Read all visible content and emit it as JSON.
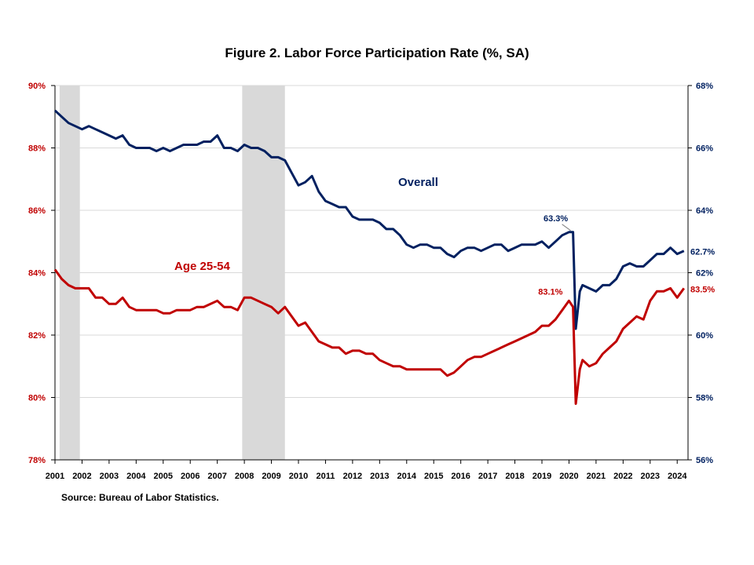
{
  "title": "Figure 2. Labor Force Participation  Rate (%, SA)",
  "source": "Source: Bureau of Labor Statistics.",
  "colors": {
    "overall": "#002060",
    "age": "#c00000",
    "recession": "#d9d9d9",
    "grid": "#d9d9d9"
  },
  "chart_data": {
    "type": "line",
    "title": "Figure 2. Labor Force Participation  Rate (%, SA)",
    "x_ticks": [
      "2001",
      "2002",
      "2003",
      "2004",
      "2005",
      "2006",
      "2007",
      "2008",
      "2009",
      "2010",
      "2011",
      "2012",
      "2013",
      "2014",
      "2015",
      "2016",
      "2017",
      "2018",
      "2019",
      "2020",
      "2021",
      "2022",
      "2023",
      "2024"
    ],
    "xlim": [
      2001.0,
      2024.4
    ],
    "y_left": {
      "ylim": [
        78,
        90
      ],
      "ticks": [
        "78%",
        "80%",
        "82%",
        "84%",
        "86%",
        "88%",
        "90%"
      ]
    },
    "y_right": {
      "ylim": [
        56,
        68
      ],
      "ticks": [
        "56%",
        "58%",
        "60%",
        "62%",
        "64%",
        "66%",
        "68%"
      ]
    },
    "grid": true,
    "recessions": [
      [
        2001.17,
        2001.92
      ],
      [
        2007.92,
        2009.5
      ]
    ],
    "series": [
      {
        "name": "Overall",
        "axis": "right",
        "points": [
          [
            2001.0,
            67.2
          ],
          [
            2001.25,
            67.0
          ],
          [
            2001.5,
            66.8
          ],
          [
            2001.75,
            66.7
          ],
          [
            2002.0,
            66.6
          ],
          [
            2002.25,
            66.7
          ],
          [
            2002.5,
            66.6
          ],
          [
            2002.75,
            66.5
          ],
          [
            2003.0,
            66.4
          ],
          [
            2003.25,
            66.3
          ],
          [
            2003.5,
            66.4
          ],
          [
            2003.75,
            66.1
          ],
          [
            2004.0,
            66.0
          ],
          [
            2004.25,
            66.0
          ],
          [
            2004.5,
            66.0
          ],
          [
            2004.75,
            65.9
          ],
          [
            2005.0,
            66.0
          ],
          [
            2005.25,
            65.9
          ],
          [
            2005.5,
            66.0
          ],
          [
            2005.75,
            66.1
          ],
          [
            2006.0,
            66.1
          ],
          [
            2006.25,
            66.1
          ],
          [
            2006.5,
            66.2
          ],
          [
            2006.75,
            66.2
          ],
          [
            2007.0,
            66.4
          ],
          [
            2007.25,
            66.0
          ],
          [
            2007.5,
            66.0
          ],
          [
            2007.75,
            65.9
          ],
          [
            2008.0,
            66.1
          ],
          [
            2008.25,
            66.0
          ],
          [
            2008.5,
            66.0
          ],
          [
            2008.75,
            65.9
          ],
          [
            2009.0,
            65.7
          ],
          [
            2009.25,
            65.7
          ],
          [
            2009.5,
            65.6
          ],
          [
            2009.75,
            65.2
          ],
          [
            2010.0,
            64.8
          ],
          [
            2010.25,
            64.9
          ],
          [
            2010.5,
            65.1
          ],
          [
            2010.75,
            64.6
          ],
          [
            2011.0,
            64.3
          ],
          [
            2011.25,
            64.2
          ],
          [
            2011.5,
            64.1
          ],
          [
            2011.75,
            64.1
          ],
          [
            2012.0,
            63.8
          ],
          [
            2012.25,
            63.7
          ],
          [
            2012.5,
            63.7
          ],
          [
            2012.75,
            63.7
          ],
          [
            2013.0,
            63.6
          ],
          [
            2013.25,
            63.4
          ],
          [
            2013.5,
            63.4
          ],
          [
            2013.75,
            63.2
          ],
          [
            2014.0,
            62.9
          ],
          [
            2014.25,
            62.8
          ],
          [
            2014.5,
            62.9
          ],
          [
            2014.75,
            62.9
          ],
          [
            2015.0,
            62.8
          ],
          [
            2015.25,
            62.8
          ],
          [
            2015.5,
            62.6
          ],
          [
            2015.75,
            62.5
          ],
          [
            2016.0,
            62.7
          ],
          [
            2016.25,
            62.8
          ],
          [
            2016.5,
            62.8
          ],
          [
            2016.75,
            62.7
          ],
          [
            2017.0,
            62.8
          ],
          [
            2017.25,
            62.9
          ],
          [
            2017.5,
            62.9
          ],
          [
            2017.75,
            62.7
          ],
          [
            2018.0,
            62.8
          ],
          [
            2018.25,
            62.9
          ],
          [
            2018.5,
            62.9
          ],
          [
            2018.75,
            62.9
          ],
          [
            2019.0,
            63.0
          ],
          [
            2019.25,
            62.8
          ],
          [
            2019.5,
            63.0
          ],
          [
            2019.75,
            63.2
          ],
          [
            2020.0,
            63.3
          ],
          [
            2020.15,
            63.3
          ],
          [
            2020.25,
            60.2
          ],
          [
            2020.4,
            61.4
          ],
          [
            2020.5,
            61.6
          ],
          [
            2020.75,
            61.5
          ],
          [
            2021.0,
            61.4
          ],
          [
            2021.25,
            61.6
          ],
          [
            2021.5,
            61.6
          ],
          [
            2021.75,
            61.8
          ],
          [
            2022.0,
            62.2
          ],
          [
            2022.25,
            62.3
          ],
          [
            2022.5,
            62.2
          ],
          [
            2022.75,
            62.2
          ],
          [
            2023.0,
            62.4
          ],
          [
            2023.25,
            62.6
          ],
          [
            2023.5,
            62.6
          ],
          [
            2023.75,
            62.8
          ],
          [
            2024.0,
            62.6
          ],
          [
            2024.25,
            62.7
          ]
        ]
      },
      {
        "name": "Age 25-54",
        "axis": "left",
        "points": [
          [
            2001.0,
            84.1
          ],
          [
            2001.25,
            83.8
          ],
          [
            2001.5,
            83.6
          ],
          [
            2001.75,
            83.5
          ],
          [
            2002.0,
            83.5
          ],
          [
            2002.25,
            83.5
          ],
          [
            2002.5,
            83.2
          ],
          [
            2002.75,
            83.2
          ],
          [
            2003.0,
            83.0
          ],
          [
            2003.25,
            83.0
          ],
          [
            2003.5,
            83.2
          ],
          [
            2003.75,
            82.9
          ],
          [
            2004.0,
            82.8
          ],
          [
            2004.25,
            82.8
          ],
          [
            2004.5,
            82.8
          ],
          [
            2004.75,
            82.8
          ],
          [
            2005.0,
            82.7
          ],
          [
            2005.25,
            82.7
          ],
          [
            2005.5,
            82.8
          ],
          [
            2005.75,
            82.8
          ],
          [
            2006.0,
            82.8
          ],
          [
            2006.25,
            82.9
          ],
          [
            2006.5,
            82.9
          ],
          [
            2006.75,
            83.0
          ],
          [
            2007.0,
            83.1
          ],
          [
            2007.25,
            82.9
          ],
          [
            2007.5,
            82.9
          ],
          [
            2007.75,
            82.8
          ],
          [
            2008.0,
            83.2
          ],
          [
            2008.25,
            83.2
          ],
          [
            2008.5,
            83.1
          ],
          [
            2008.75,
            83.0
          ],
          [
            2009.0,
            82.9
          ],
          [
            2009.25,
            82.7
          ],
          [
            2009.5,
            82.9
          ],
          [
            2009.75,
            82.6
          ],
          [
            2010.0,
            82.3
          ],
          [
            2010.25,
            82.4
          ],
          [
            2010.5,
            82.1
          ],
          [
            2010.75,
            81.8
          ],
          [
            2011.0,
            81.7
          ],
          [
            2011.25,
            81.6
          ],
          [
            2011.5,
            81.6
          ],
          [
            2011.75,
            81.4
          ],
          [
            2012.0,
            81.5
          ],
          [
            2012.25,
            81.5
          ],
          [
            2012.5,
            81.4
          ],
          [
            2012.75,
            81.4
          ],
          [
            2013.0,
            81.2
          ],
          [
            2013.25,
            81.1
          ],
          [
            2013.5,
            81.0
          ],
          [
            2013.75,
            81.0
          ],
          [
            2014.0,
            80.9
          ],
          [
            2014.25,
            80.9
          ],
          [
            2014.5,
            80.9
          ],
          [
            2014.75,
            80.9
          ],
          [
            2015.0,
            80.9
          ],
          [
            2015.25,
            80.9
          ],
          [
            2015.5,
            80.7
          ],
          [
            2015.75,
            80.8
          ],
          [
            2016.0,
            81.0
          ],
          [
            2016.25,
            81.2
          ],
          [
            2016.5,
            81.3
          ],
          [
            2016.75,
            81.3
          ],
          [
            2017.0,
            81.4
          ],
          [
            2017.25,
            81.5
          ],
          [
            2017.5,
            81.6
          ],
          [
            2017.75,
            81.7
          ],
          [
            2018.0,
            81.8
          ],
          [
            2018.25,
            81.9
          ],
          [
            2018.5,
            82.0
          ],
          [
            2018.75,
            82.1
          ],
          [
            2019.0,
            82.3
          ],
          [
            2019.25,
            82.3
          ],
          [
            2019.5,
            82.5
          ],
          [
            2019.75,
            82.8
          ],
          [
            2020.0,
            83.1
          ],
          [
            2020.15,
            82.9
          ],
          [
            2020.25,
            79.8
          ],
          [
            2020.4,
            80.9
          ],
          [
            2020.5,
            81.2
          ],
          [
            2020.75,
            81.0
          ],
          [
            2021.0,
            81.1
          ],
          [
            2021.25,
            81.4
          ],
          [
            2021.5,
            81.6
          ],
          [
            2021.75,
            81.8
          ],
          [
            2022.0,
            82.2
          ],
          [
            2022.25,
            82.4
          ],
          [
            2022.5,
            82.6
          ],
          [
            2022.75,
            82.5
          ],
          [
            2023.0,
            83.1
          ],
          [
            2023.25,
            83.4
          ],
          [
            2023.5,
            83.4
          ],
          [
            2023.75,
            83.5
          ],
          [
            2024.0,
            83.2
          ],
          [
            2024.25,
            83.5
          ]
        ]
      }
    ],
    "annotations": [
      {
        "text": "Overall",
        "series": "Overall"
      },
      {
        "text": "Age 25-54",
        "series": "Age 25-54"
      },
      {
        "text": "63.3%",
        "series": "Overall",
        "x": 2020.15,
        "y": 63.3
      },
      {
        "text": "62.7%",
        "series": "Overall",
        "x": 2024.25,
        "y": 62.7
      },
      {
        "text": "83.1%",
        "series": "Age 25-54",
        "x": 2020.0,
        "y": 83.1
      },
      {
        "text": "83.5%",
        "series": "Age 25-54",
        "x": 2024.25,
        "y": 83.5
      }
    ]
  }
}
